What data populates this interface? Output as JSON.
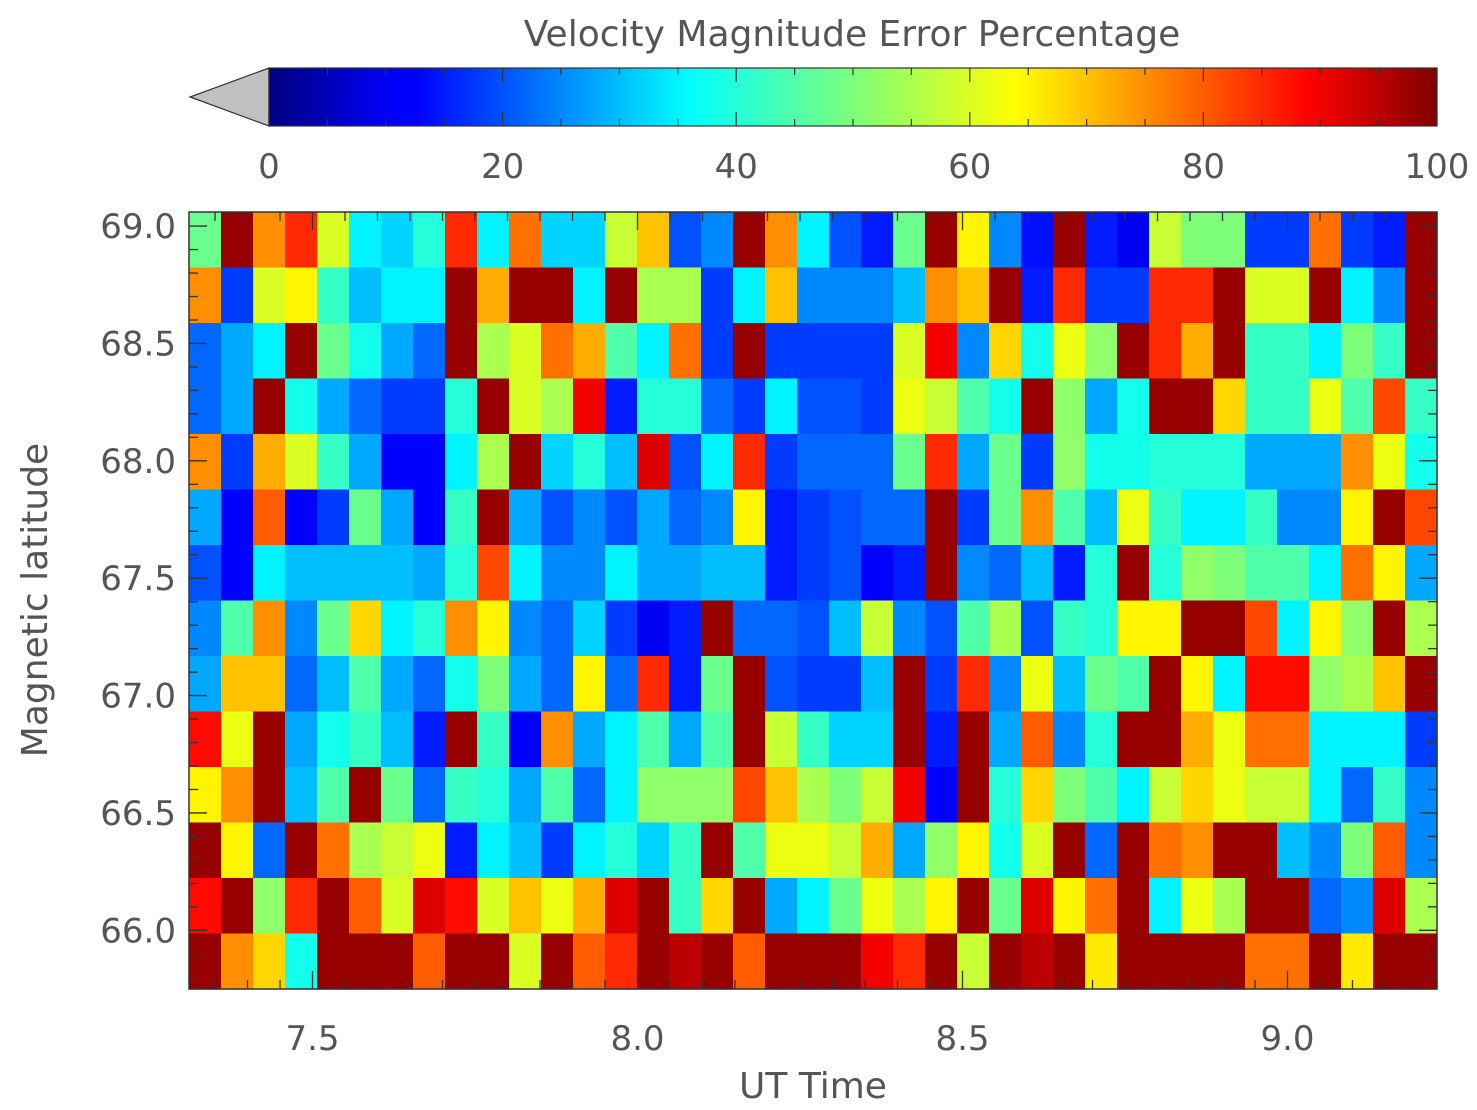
{
  "chart_data": {
    "type": "heatmap",
    "title": "Velocity Magnitude Error Percentage",
    "xlabel": "UT Time",
    "ylabel": "Magnetic latitude",
    "x_ticks": [
      "7.5",
      "8.0",
      "8.5",
      "9.0"
    ],
    "y_ticks": [
      "66.0",
      "66.5",
      "67.0",
      "67.5",
      "68.0",
      "68.5",
      "69.0"
    ],
    "x_tick_values": [
      7.5,
      8.0,
      8.5,
      9.0
    ],
    "y_tick_values": [
      66.0,
      66.5,
      67.0,
      67.5,
      68.0,
      68.5,
      69.0
    ],
    "xlim": [
      7.31,
      9.23
    ],
    "ylim": [
      65.75,
      69.06
    ],
    "colorbar": {
      "ticks": [
        "0",
        "20",
        "40",
        "60",
        "80",
        "100"
      ],
      "tick_values": [
        0,
        20,
        40,
        60,
        80,
        100
      ],
      "range": [
        0,
        100
      ],
      "under_color": "#c0c0c0",
      "colormap": "jet"
    },
    "grid_shape": {
      "columns": 39,
      "rows": 14
    },
    "note": "values in % (0-100), rows ordered from top (high latitude) to bottom",
    "values": [
      [
        48,
        98,
        75,
        85,
        60,
        35,
        32,
        40,
        85,
        35,
        78,
        32,
        32,
        58,
        70,
        20,
        25,
        98,
        75,
        35,
        20,
        15,
        48,
        98,
        65,
        25,
        14,
        98,
        15,
        10,
        58,
        50,
        50,
        18,
        18,
        78,
        18,
        15,
        98
      ],
      [
        75,
        18,
        60,
        65,
        42,
        30,
        35,
        35,
        98,
        72,
        98,
        98,
        35,
        98,
        55,
        55,
        18,
        35,
        70,
        25,
        25,
        25,
        30,
        75,
        70,
        98,
        15,
        85,
        18,
        18,
        85,
        85,
        98,
        60,
        60,
        98,
        35,
        25,
        98
      ],
      [
        22,
        28,
        35,
        98,
        48,
        38,
        28,
        22,
        98,
        55,
        60,
        78,
        72,
        45,
        35,
        78,
        18,
        98,
        18,
        18,
        18,
        18,
        60,
        90,
        25,
        68,
        38,
        62,
        52,
        98,
        85,
        72,
        98,
        42,
        42,
        35,
        50,
        42,
        98
      ],
      [
        22,
        28,
        98,
        38,
        28,
        22,
        18,
        18,
        40,
        98,
        60,
        55,
        90,
        15,
        40,
        40,
        22,
        18,
        35,
        20,
        20,
        18,
        62,
        58,
        45,
        38,
        98,
        52,
        28,
        38,
        98,
        98,
        68,
        42,
        42,
        62,
        45,
        82,
        42
      ],
      [
        75,
        18,
        72,
        60,
        42,
        28,
        12,
        12,
        35,
        55,
        98,
        32,
        40,
        30,
        92,
        20,
        35,
        85,
        18,
        22,
        22,
        22,
        48,
        85,
        28,
        48,
        18,
        52,
        38,
        38,
        40,
        40,
        40,
        28,
        28,
        28,
        75,
        62,
        38
      ],
      [
        28,
        12,
        80,
        12,
        18,
        48,
        28,
        12,
        42,
        98,
        28,
        20,
        25,
        20,
        28,
        22,
        25,
        65,
        15,
        18,
        20,
        22,
        22,
        98,
        18,
        48,
        75,
        45,
        30,
        62,
        42,
        35,
        35,
        42,
        25,
        25,
        65,
        98,
        82
      ],
      [
        20,
        12,
        35,
        30,
        30,
        30,
        30,
        28,
        40,
        82,
        35,
        25,
        25,
        35,
        28,
        28,
        30,
        30,
        15,
        18,
        20,
        12,
        15,
        98,
        25,
        22,
        30,
        15,
        40,
        98,
        40,
        52,
        50,
        45,
        45,
        35,
        78,
        65,
        28
      ],
      [
        25,
        45,
        75,
        25,
        48,
        68,
        35,
        40,
        75,
        65,
        25,
        22,
        32,
        18,
        10,
        15,
        98,
        22,
        22,
        20,
        30,
        58,
        25,
        20,
        45,
        55,
        20,
        42,
        40,
        65,
        65,
        98,
        98,
        82,
        35,
        65,
        52,
        98,
        55
      ],
      [
        28,
        70,
        70,
        22,
        30,
        45,
        28,
        22,
        38,
        50,
        28,
        22,
        65,
        22,
        85,
        15,
        48,
        98,
        20,
        18,
        18,
        30,
        98,
        18,
        85,
        25,
        62,
        30,
        48,
        45,
        98,
        65,
        35,
        88,
        88,
        52,
        55,
        70,
        98
      ],
      [
        88,
        62,
        98,
        28,
        38,
        42,
        30,
        15,
        98,
        42,
        12,
        75,
        28,
        35,
        45,
        28,
        45,
        98,
        58,
        42,
        32,
        32,
        98,
        15,
        98,
        28,
        80,
        25,
        40,
        98,
        98,
        72,
        62,
        78,
        78,
        35,
        35,
        35,
        18
      ],
      [
        65,
        75,
        98,
        30,
        45,
        98,
        48,
        22,
        42,
        40,
        28,
        45,
        22,
        35,
        52,
        52,
        52,
        82,
        70,
        55,
        50,
        58,
        90,
        12,
        98,
        40,
        68,
        50,
        45,
        35,
        58,
        68,
        62,
        58,
        58,
        35,
        22,
        42,
        25
      ],
      [
        98,
        65,
        22,
        98,
        78,
        55,
        58,
        62,
        15,
        35,
        30,
        18,
        35,
        40,
        32,
        42,
        98,
        45,
        62,
        62,
        58,
        72,
        28,
        52,
        65,
        38,
        60,
        98,
        22,
        98,
        78,
        75,
        98,
        98,
        30,
        25,
        50,
        80,
        25
      ],
      [
        88,
        98,
        52,
        85,
        98,
        80,
        60,
        92,
        88,
        60,
        70,
        62,
        72,
        92,
        98,
        42,
        68,
        98,
        28,
        35,
        48,
        62,
        55,
        65,
        98,
        48,
        92,
        65,
        78,
        98,
        35,
        62,
        55,
        98,
        98,
        22,
        25,
        92,
        55
      ],
      [
        98,
        75,
        68,
        38,
        98,
        98,
        98,
        80,
        98,
        98,
        60,
        98,
        80,
        85,
        98,
        95,
        98,
        80,
        98,
        98,
        98,
        90,
        85,
        98,
        58,
        98,
        95,
        98,
        66,
        98,
        98,
        98,
        98,
        78,
        78,
        98,
        66,
        98,
        98
      ]
    ]
  }
}
